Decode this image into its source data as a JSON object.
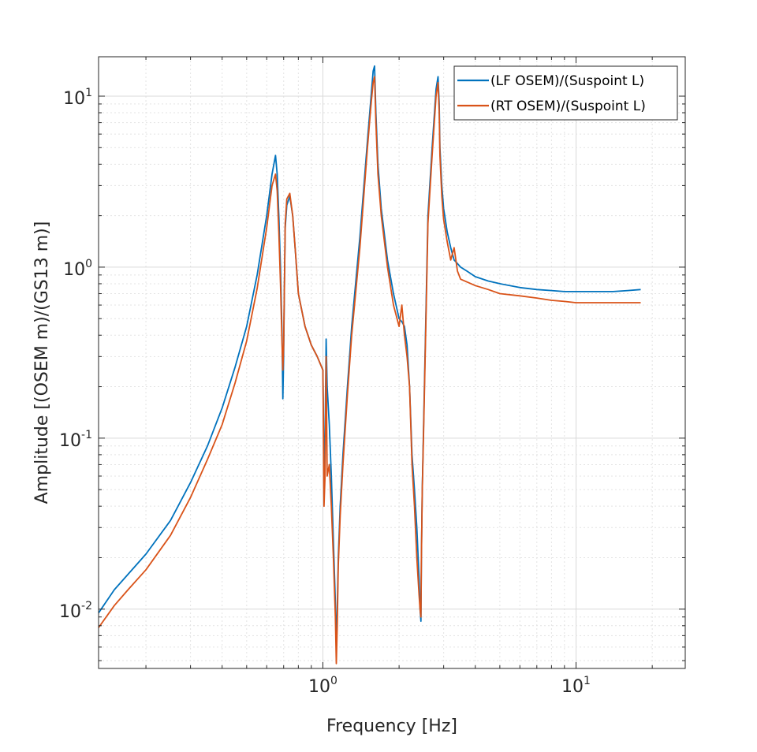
{
  "chart_data": {
    "type": "line",
    "xscale": "log",
    "yscale": "log",
    "xlabel": "Frequency [Hz]",
    "ylabel": "Amplitude [(OSEM m)/(GS13 m)]",
    "xlim": [
      0.13,
      27
    ],
    "ylim": [
      0.0045,
      17
    ],
    "grid": true,
    "minor_grid": true,
    "legend_location": "top-right",
    "x_ticks": [
      {
        "base": "10",
        "exp": "0",
        "value": 1
      },
      {
        "base": "10",
        "exp": "1",
        "value": 10
      }
    ],
    "y_ticks": [
      {
        "base": "10",
        "exp": "-2",
        "value": 0.01
      },
      {
        "base": "10",
        "exp": "-1",
        "value": 0.1
      },
      {
        "base": "10",
        "exp": "0",
        "value": 1
      },
      {
        "base": "10",
        "exp": "1",
        "value": 10
      }
    ],
    "series": [
      {
        "name": "(LF OSEM)/(Suspoint L)",
        "color": "#0072BD",
        "x": [
          0.13,
          0.15,
          0.17,
          0.2,
          0.25,
          0.3,
          0.35,
          0.4,
          0.45,
          0.5,
          0.55,
          0.6,
          0.63,
          0.65,
          0.66,
          0.67,
          0.68,
          0.69,
          0.695,
          0.7,
          0.705,
          0.71,
          0.72,
          0.74,
          0.76,
          0.78,
          0.8,
          0.85,
          0.9,
          0.95,
          1.0,
          1.01,
          1.02,
          1.03,
          1.04,
          1.06,
          1.08,
          1.1,
          1.12,
          1.13,
          1.14,
          1.15,
          1.17,
          1.2,
          1.25,
          1.3,
          1.4,
          1.5,
          1.55,
          1.58,
          1.6,
          1.62,
          1.65,
          1.7,
          1.8,
          1.9,
          2.0,
          2.05,
          2.1,
          2.15,
          2.2,
          2.25,
          2.3,
          2.35,
          2.4,
          2.42,
          2.44,
          2.45,
          2.47,
          2.5,
          2.55,
          2.6,
          2.7,
          2.8,
          2.85,
          2.88,
          2.9,
          2.95,
          3.0,
          3.1,
          3.2,
          3.3,
          3.4,
          3.5,
          3.7,
          4.0,
          4.5,
          5,
          6,
          7,
          8,
          9,
          10,
          12,
          14,
          16,
          18
        ],
        "y": [
          0.0095,
          0.013,
          0.016,
          0.021,
          0.033,
          0.055,
          0.09,
          0.15,
          0.26,
          0.45,
          0.9,
          2.0,
          3.5,
          4.5,
          3.5,
          2.0,
          1.0,
          0.4,
          0.17,
          0.3,
          0.8,
          1.7,
          2.3,
          2.6,
          2.0,
          1.2,
          0.7,
          0.45,
          0.35,
          0.3,
          0.25,
          0.065,
          0.1,
          0.38,
          0.2,
          0.12,
          0.06,
          0.025,
          0.011,
          0.006,
          0.01,
          0.02,
          0.04,
          0.08,
          0.2,
          0.45,
          1.5,
          5.5,
          10,
          14,
          15,
          8,
          4,
          2.2,
          1.1,
          0.7,
          0.5,
          0.48,
          0.45,
          0.35,
          0.2,
          0.08,
          0.05,
          0.03,
          0.015,
          0.01,
          0.0085,
          0.02,
          0.05,
          0.12,
          0.5,
          2,
          5,
          11,
          13,
          9,
          5,
          3,
          2.2,
          1.6,
          1.3,
          1.1,
          1.05,
          1,
          0.95,
          0.88,
          0.83,
          0.8,
          0.76,
          0.74,
          0.73,
          0.72,
          0.72,
          0.72,
          0.72,
          0.73,
          0.74
        ]
      },
      {
        "name": "(RT OSEM)/(Suspoint L)",
        "color": "#D95319",
        "x": [
          0.13,
          0.15,
          0.17,
          0.2,
          0.25,
          0.3,
          0.35,
          0.4,
          0.45,
          0.5,
          0.55,
          0.6,
          0.63,
          0.65,
          0.66,
          0.67,
          0.68,
          0.69,
          0.695,
          0.7,
          0.705,
          0.71,
          0.72,
          0.74,
          0.76,
          0.78,
          0.8,
          0.85,
          0.9,
          0.95,
          1.0,
          1.01,
          1.02,
          1.03,
          1.04,
          1.06,
          1.08,
          1.1,
          1.12,
          1.13,
          1.14,
          1.15,
          1.17,
          1.2,
          1.25,
          1.3,
          1.4,
          1.5,
          1.55,
          1.58,
          1.6,
          1.62,
          1.65,
          1.7,
          1.8,
          1.9,
          2.0,
          2.05,
          2.1,
          2.15,
          2.2,
          2.25,
          2.3,
          2.35,
          2.4,
          2.42,
          2.44,
          2.45,
          2.47,
          2.5,
          2.55,
          2.6,
          2.7,
          2.8,
          2.85,
          2.88,
          2.9,
          2.95,
          3.0,
          3.1,
          3.2,
          3.3,
          3.4,
          3.5,
          3.7,
          4.0,
          4.5,
          5,
          6,
          7,
          8,
          9,
          10,
          12,
          14,
          16,
          18
        ],
        "y": [
          0.0078,
          0.0105,
          0.013,
          0.017,
          0.027,
          0.045,
          0.075,
          0.12,
          0.21,
          0.37,
          0.75,
          1.7,
          3.0,
          3.5,
          2.8,
          1.6,
          0.8,
          0.35,
          0.25,
          0.35,
          0.8,
          1.8,
          2.5,
          2.7,
          2.0,
          1.2,
          0.7,
          0.45,
          0.35,
          0.3,
          0.25,
          0.04,
          0.06,
          0.3,
          0.06,
          0.07,
          0.04,
          0.02,
          0.009,
          0.0048,
          0.008,
          0.018,
          0.035,
          0.07,
          0.18,
          0.4,
          1.3,
          5,
          9,
          12,
          13,
          7,
          3.5,
          2,
          1,
          0.6,
          0.45,
          0.6,
          0.4,
          0.3,
          0.2,
          0.07,
          0.04,
          0.02,
          0.012,
          0.01,
          0.009,
          0.02,
          0.05,
          0.11,
          0.45,
          1.8,
          4.5,
          10,
          12,
          8,
          4.5,
          2.6,
          1.9,
          1.4,
          1.1,
          1.3,
          0.95,
          0.85,
          0.82,
          0.78,
          0.74,
          0.7,
          0.68,
          0.66,
          0.64,
          0.63,
          0.62,
          0.62,
          0.62,
          0.62,
          0.62
        ]
      }
    ]
  }
}
